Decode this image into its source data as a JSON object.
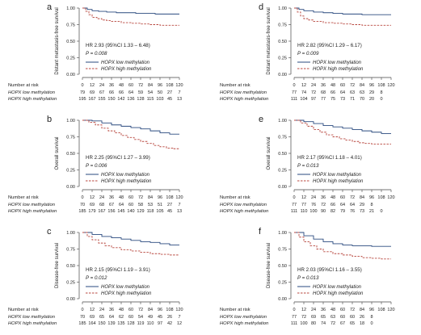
{
  "chart_data": [
    {
      "type": "line",
      "panel_label": "a",
      "ylabel": "Distant metastasis-free survival",
      "hr_text": "HR 2.93 (95%CI 1.33 – 6.48)",
      "p_text": "P = 0.008",
      "legend": [
        "HOPX low methylation",
        "HOPX high methylation"
      ],
      "x_ticks": [
        "0",
        "12",
        "24",
        "36",
        "48",
        "60",
        "72",
        "84",
        "96",
        "108",
        "120"
      ],
      "y_ticks": [
        "0.00",
        "0.25",
        "0.50",
        "0.75",
        "1.00"
      ],
      "xlim": [
        0,
        120
      ],
      "ylim": [
        0,
        1
      ],
      "series": [
        {
          "name": "HOPX low methylation",
          "x": [
            0,
            6,
            12,
            20,
            30,
            42,
            54,
            66,
            78,
            90,
            102,
            114,
            120
          ],
          "y": [
            1.0,
            0.98,
            0.96,
            0.95,
            0.94,
            0.93,
            0.93,
            0.92,
            0.92,
            0.91,
            0.91,
            0.91,
            0.91
          ]
        },
        {
          "name": "HOPX high methylation",
          "x": [
            0,
            4,
            8,
            12,
            18,
            24,
            30,
            36,
            48,
            60,
            72,
            84,
            96,
            108,
            120
          ],
          "y": [
            1.0,
            0.95,
            0.9,
            0.86,
            0.84,
            0.82,
            0.81,
            0.8,
            0.78,
            0.77,
            0.76,
            0.75,
            0.74,
            0.74,
            0.74
          ]
        }
      ],
      "risk_label": "Number at risk",
      "risk_rows": [
        {
          "name": "HOPX low methylation",
          "values": [
            "79",
            "69",
            "67",
            "66",
            "66",
            "64",
            "59",
            "54",
            "50",
            "27",
            "7"
          ]
        },
        {
          "name": "HOPX high methylation",
          "values": [
            "195",
            "167",
            "155",
            "150",
            "142",
            "136",
            "128",
            "115",
            "103",
            "45",
            "13"
          ]
        }
      ]
    },
    {
      "type": "line",
      "panel_label": "b",
      "ylabel": "Overall survival",
      "hr_text": "HR 2.25 (95%CI 1.27 – 3.99)",
      "p_text": "P = 0.006",
      "legend": [
        "HOPX low methylation",
        "HOPX high methylation"
      ],
      "x_ticks": [
        "0",
        "12",
        "24",
        "36",
        "48",
        "60",
        "72",
        "84",
        "96",
        "108",
        "120"
      ],
      "y_ticks": [
        "0.00",
        "0.25",
        "0.50",
        "0.75",
        "1.00"
      ],
      "xlim": [
        0,
        120
      ],
      "ylim": [
        0,
        1
      ],
      "series": [
        {
          "name": "HOPX low methylation",
          "x": [
            0,
            12,
            24,
            36,
            48,
            60,
            72,
            84,
            96,
            108,
            120
          ],
          "y": [
            1.0,
            0.99,
            0.96,
            0.93,
            0.91,
            0.89,
            0.87,
            0.84,
            0.81,
            0.79,
            0.79
          ]
        },
        {
          "name": "HOPX high methylation",
          "x": [
            0,
            8,
            16,
            24,
            32,
            40,
            48,
            56,
            64,
            72,
            80,
            88,
            96,
            104,
            112,
            120
          ],
          "y": [
            1.0,
            0.97,
            0.93,
            0.88,
            0.84,
            0.81,
            0.77,
            0.74,
            0.71,
            0.68,
            0.65,
            0.62,
            0.6,
            0.58,
            0.57,
            0.57
          ]
        }
      ],
      "risk_label": "Number at risk",
      "risk_rows": [
        {
          "name": "HOPX low methylation",
          "values": [
            "70",
            "69",
            "68",
            "67",
            "64",
            "60",
            "58",
            "53",
            "51",
            "27",
            "7"
          ]
        },
        {
          "name": "HOPX high methylation",
          "values": [
            "185",
            "179",
            "167",
            "156",
            "145",
            "140",
            "129",
            "118",
            "105",
            "45",
            "13"
          ]
        }
      ]
    },
    {
      "type": "line",
      "panel_label": "c",
      "ylabel": "Disease-free survival",
      "hr_text": "HR 2.15 (95%CI 1.19 – 3.91)",
      "p_text": "P = 0.012",
      "legend": [
        "HOPX low methylation",
        "HOPX high methylation"
      ],
      "x_ticks": [
        "0",
        "12",
        "24",
        "36",
        "48",
        "60",
        "72",
        "84",
        "96",
        "108",
        "120"
      ],
      "y_ticks": [
        "0.00",
        "0.25",
        "0.50",
        "0.75",
        "1.00"
      ],
      "xlim": [
        0,
        120
      ],
      "ylim": [
        0,
        1
      ],
      "series": [
        {
          "name": "HOPX low methylation",
          "x": [
            0,
            12,
            24,
            36,
            48,
            60,
            72,
            84,
            96,
            108,
            120
          ],
          "y": [
            1.0,
            0.97,
            0.94,
            0.92,
            0.9,
            0.88,
            0.86,
            0.85,
            0.83,
            0.81,
            0.81
          ]
        },
        {
          "name": "HOPX high methylation",
          "x": [
            0,
            6,
            12,
            20,
            28,
            36,
            48,
            60,
            72,
            84,
            96,
            108,
            120
          ],
          "y": [
            1.0,
            0.94,
            0.89,
            0.84,
            0.8,
            0.77,
            0.74,
            0.72,
            0.7,
            0.68,
            0.67,
            0.66,
            0.66
          ]
        }
      ],
      "risk_label": "Number at risk",
      "risk_rows": [
        {
          "name": "HOPX low methylation",
          "values": [
            "70",
            "69",
            "65",
            "64",
            "62",
            "60",
            "54",
            "49",
            "45",
            "26",
            "7"
          ]
        },
        {
          "name": "HOPX high methylation",
          "values": [
            "185",
            "164",
            "150",
            "139",
            "135",
            "128",
            "119",
            "110",
            "97",
            "42",
            "12"
          ]
        }
      ]
    },
    {
      "type": "line",
      "panel_label": "d",
      "ylabel": "Distant metastasis-free survival",
      "hr_text": "HR 2.82 (95%CI 1.29 – 6.17)",
      "p_text": "P = 0.009",
      "legend": [
        "HOPX low methylation",
        "HOPX high methylation"
      ],
      "x_ticks": [
        "0",
        "12",
        "24",
        "36",
        "48",
        "60",
        "72",
        "84",
        "96",
        "108",
        "120"
      ],
      "y_ticks": [
        "0.00",
        "0.25",
        "0.50",
        "0.75",
        "1.00"
      ],
      "xlim": [
        0,
        120
      ],
      "ylim": [
        0,
        1
      ],
      "series": [
        {
          "name": "HOPX low methylation",
          "x": [
            0,
            6,
            12,
            24,
            36,
            48,
            60,
            72,
            84,
            96,
            108,
            120
          ],
          "y": [
            1.0,
            0.98,
            0.96,
            0.94,
            0.93,
            0.92,
            0.91,
            0.91,
            0.9,
            0.9,
            0.9,
            0.9
          ]
        },
        {
          "name": "HOPX high methylation",
          "x": [
            0,
            4,
            8,
            12,
            18,
            24,
            36,
            48,
            60,
            72,
            84,
            96,
            108,
            120
          ],
          "y": [
            1.0,
            0.94,
            0.88,
            0.84,
            0.82,
            0.8,
            0.78,
            0.77,
            0.76,
            0.75,
            0.74,
            0.74,
            0.74,
            0.74
          ]
        }
      ],
      "risk_label": "Number at risk",
      "risk_rows": [
        {
          "name": "HOPX low methylation",
          "values": [
            "77",
            "74",
            "72",
            "68",
            "66",
            "64",
            "63",
            "63",
            "29",
            "8",
            ""
          ]
        },
        {
          "name": "HOPX high methylation",
          "values": [
            "111",
            "104",
            "97",
            "77",
            "75",
            "73",
            "71",
            "70",
            "20",
            "0",
            ""
          ]
        }
      ]
    },
    {
      "type": "line",
      "panel_label": "e",
      "ylabel": "Overall survival",
      "hr_text": "HR 2.17 (95%CI 1.18 – 4.01)",
      "p_text": "P = 0.013",
      "legend": [
        "HOPX low methylation",
        "HOPX high methylation"
      ],
      "x_ticks": [
        "0",
        "12",
        "24",
        "36",
        "48",
        "60",
        "72",
        "84",
        "96",
        "108",
        "120"
      ],
      "y_ticks": [
        "0.00",
        "0.25",
        "0.50",
        "0.75",
        "1.00"
      ],
      "xlim": [
        0,
        120
      ],
      "ylim": [
        0,
        1
      ],
      "series": [
        {
          "name": "HOPX low methylation",
          "x": [
            0,
            12,
            24,
            36,
            48,
            60,
            72,
            84,
            96,
            108,
            120
          ],
          "y": [
            1.0,
            0.98,
            0.95,
            0.92,
            0.9,
            0.88,
            0.86,
            0.84,
            0.82,
            0.8,
            0.8
          ]
        },
        {
          "name": "HOPX high methylation",
          "x": [
            0,
            8,
            16,
            24,
            32,
            40,
            48,
            56,
            64,
            72,
            80,
            88,
            96,
            108,
            120
          ],
          "y": [
            1.0,
            0.96,
            0.91,
            0.86,
            0.82,
            0.78,
            0.75,
            0.72,
            0.7,
            0.68,
            0.66,
            0.65,
            0.64,
            0.64,
            0.64
          ]
        }
      ],
      "risk_label": "Number at risk",
      "risk_rows": [
        {
          "name": "HOPX low methylation",
          "values": [
            "77",
            "77",
            "76",
            "72",
            "66",
            "64",
            "64",
            "29",
            "8",
            "",
            ""
          ]
        },
        {
          "name": "HOPX high methylation",
          "values": [
            "111",
            "110",
            "100",
            "90",
            "82",
            "79",
            "76",
            "73",
            "21",
            "0",
            ""
          ]
        }
      ]
    },
    {
      "type": "line",
      "panel_label": "f",
      "ylabel": "Disease-free survival",
      "hr_text": "HR 2.03 (95%CI 1.16 – 3.55)",
      "p_text": "P = 0.013",
      "legend": [
        "HOPX low methylation",
        "HOPX high methylation"
      ],
      "x_ticks": [
        "0",
        "12",
        "24",
        "36",
        "48",
        "60",
        "72",
        "84",
        "96",
        "108",
        "120"
      ],
      "y_ticks": [
        "0.00",
        "0.25",
        "0.50",
        "0.75",
        "1.00"
      ],
      "xlim": [
        0,
        120
      ],
      "ylim": [
        0,
        1
      ],
      "series": [
        {
          "name": "HOPX low methylation",
          "x": [
            0,
            12,
            24,
            36,
            48,
            60,
            72,
            84,
            96,
            108,
            120
          ],
          "y": [
            1.0,
            0.95,
            0.9,
            0.86,
            0.83,
            0.81,
            0.8,
            0.8,
            0.79,
            0.79,
            0.79
          ]
        },
        {
          "name": "HOPX high methylation",
          "x": [
            0,
            6,
            12,
            20,
            28,
            36,
            48,
            60,
            72,
            84,
            96,
            108,
            120
          ],
          "y": [
            1.0,
            0.93,
            0.86,
            0.8,
            0.75,
            0.71,
            0.68,
            0.66,
            0.64,
            0.62,
            0.61,
            0.6,
            0.6
          ]
        }
      ],
      "risk_label": "Number at risk",
      "risk_rows": [
        {
          "name": "HOPX low methylation",
          "values": [
            "77",
            "72",
            "69",
            "65",
            "63",
            "60",
            "60",
            "26",
            "8",
            "",
            ""
          ]
        },
        {
          "name": "HOPX high methylation",
          "values": [
            "111",
            "100",
            "80",
            "74",
            "72",
            "67",
            "65",
            "18",
            "0",
            "",
            ""
          ]
        }
      ]
    }
  ],
  "colors": {
    "low": "#2a4a7f",
    "high": "#b8473f",
    "axis": "#444444",
    "text": "#222222"
  }
}
